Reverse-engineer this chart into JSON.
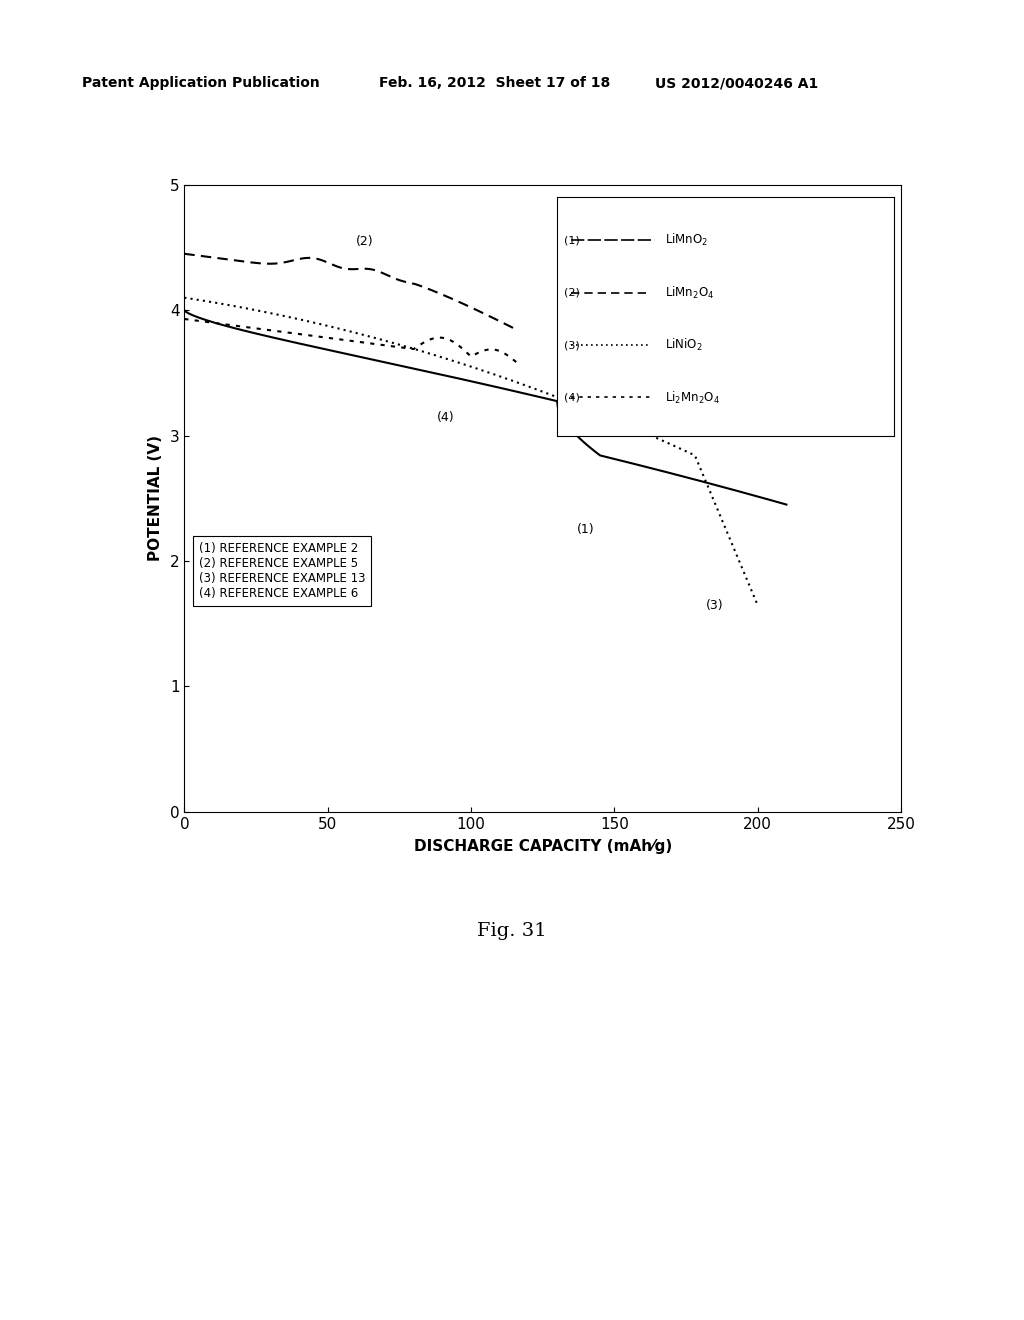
{
  "header_left": "Patent Application Publication",
  "header_mid": "Feb. 16, 2012  Sheet 17 of 18",
  "header_right": "US 2012/0040246 A1",
  "xlabel": "DISCHARGE CAPACITY (mAh⁄g)",
  "ylabel": "POTENTIAL (V)",
  "xlim": [
    0,
    250
  ],
  "ylim": [
    0,
    5
  ],
  "xticks": [
    0,
    50,
    100,
    150,
    200,
    250
  ],
  "yticks": [
    0,
    1,
    2,
    3,
    4,
    5
  ],
  "fig_label": "Fig. 31",
  "legend2_lines": [
    "(1) REFERENCE EXAMPLE 2",
    "(2) REFERENCE EXAMPLE 5",
    "(3) REFERENCE EXAMPLE 13",
    "(4) REFERENCE EXAMPLE 6"
  ],
  "background": "#ffffff",
  "line_color": "#000000"
}
